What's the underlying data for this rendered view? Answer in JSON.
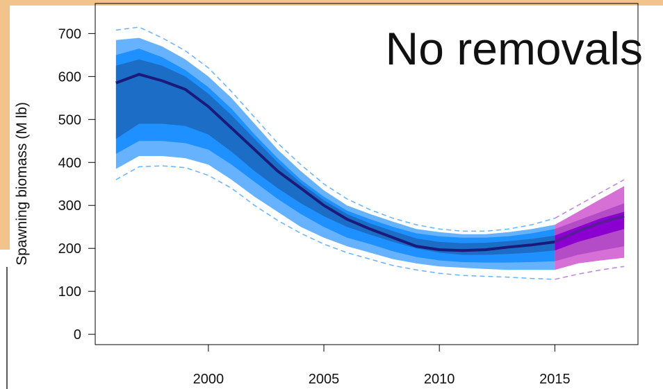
{
  "chart_data": {
    "type": "line",
    "annotation": "No removals",
    "ylabel": "Spawning biomass (M lb)",
    "xlim": [
      1995.1,
      2018.6
    ],
    "ylim": [
      -24,
      770
    ],
    "xticks": [
      2000,
      2005,
      2010,
      2015
    ],
    "yticks": [
      0,
      100,
      200,
      300,
      400,
      500,
      600,
      700
    ],
    "series": [
      {
        "x": [
          1996,
          1997,
          1998,
          1999,
          2000,
          2001,
          2002,
          2003,
          2004,
          2005,
          2006,
          2007,
          2008,
          2009,
          2010,
          2011,
          2012,
          2013,
          2014,
          2015
        ],
        "values": [
          585,
          605,
          590,
          570,
          530,
          480,
          430,
          380,
          340,
          300,
          268,
          245,
          225,
          205,
          197,
          195,
          197,
          203,
          208,
          215
        ],
        "color": "#1a1a7a",
        "interval_color": "#66b2ff",
        "interval_upper": [
          708,
          715,
          690,
          660,
          620,
          565,
          505,
          445,
          395,
          350,
          315,
          290,
          270,
          255,
          245,
          240,
          240,
          245,
          255,
          270
        ],
        "interval_lower": [
          360,
          390,
          392,
          388,
          370,
          340,
          300,
          265,
          235,
          210,
          190,
          175,
          160,
          150,
          142,
          137,
          135,
          133,
          130,
          128
        ],
        "bands": [
          {
            "color": "#66b2ff",
            "upper": [
              685,
              690,
              670,
              640,
              600,
              550,
              490,
              430,
              380,
              335,
              300,
              280,
              262,
              245,
              238,
              233,
              233,
              238,
              245,
              255
            ],
            "lower": [
              385,
              415,
              415,
              410,
              395,
              360,
              320,
              285,
              250,
              225,
              205,
              190,
              175,
              165,
              158,
              155,
              152,
              150,
              150,
              150
            ]
          },
          {
            "color": "#1e90ff",
            "upper": [
              650,
              665,
              645,
              615,
              575,
              525,
              465,
              410,
              360,
              320,
              288,
              268,
              250,
              235,
              228,
              225,
              225,
              228,
              235,
              245
            ],
            "lower": [
              420,
              450,
              450,
              445,
              430,
              395,
              355,
              315,
              280,
              250,
              225,
              210,
              193,
              180,
              172,
              168,
              167,
              167,
              168,
              170
            ]
          },
          {
            "color": "#1c6dc6",
            "upper": [
              625,
              640,
              625,
              600,
              560,
              510,
              455,
              400,
              352,
              312,
              280,
              258,
              240,
              223,
              215,
              212,
              213,
              217,
              222,
              230
            ],
            "lower": [
              455,
              490,
              490,
              485,
              465,
              425,
              380,
              340,
              305,
              275,
              250,
              232,
              215,
              200,
              190,
              185,
              185,
              187,
              190,
              195
            ]
          }
        ]
      },
      {
        "x": [
          2015,
          2016,
          2017,
          2018
        ],
        "values": [
          215,
          240,
          260,
          275
        ],
        "color": "#5a1a9a",
        "interval_color": "#c080e0",
        "interval_upper": [
          270,
          300,
          330,
          360
        ],
        "interval_lower": [
          128,
          140,
          150,
          158
        ],
        "bands": [
          {
            "color": "#d670d6",
            "upper": [
              255,
              285,
              315,
              345
            ],
            "lower": [
              150,
              165,
              172,
              178
            ]
          },
          {
            "color": "#b44cc8",
            "upper": [
              245,
              265,
              285,
              305
            ],
            "lower": [
              170,
              185,
              195,
              205
            ]
          },
          {
            "color": "#8b00d0",
            "upper": [
              230,
              250,
              270,
              285
            ],
            "lower": [
              195,
              215,
              230,
              245
            ]
          }
        ]
      }
    ]
  }
}
